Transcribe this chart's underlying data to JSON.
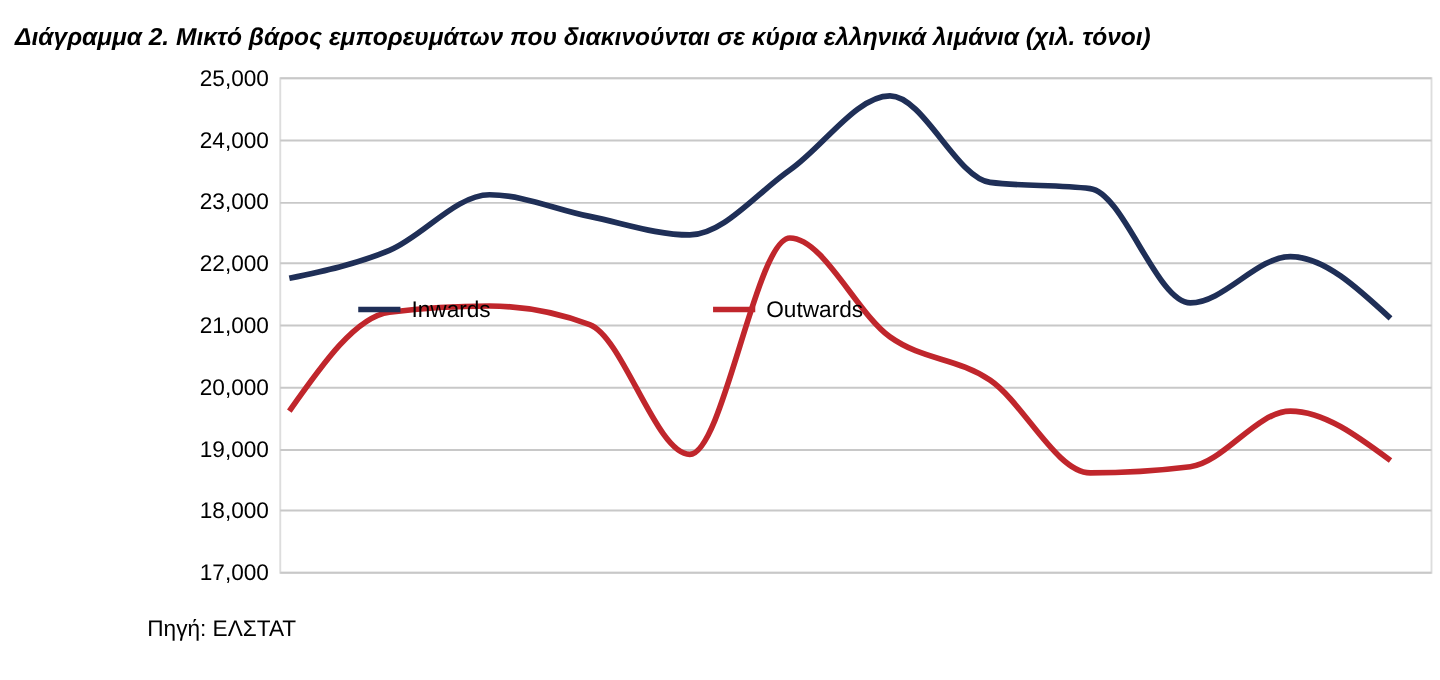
{
  "chart_data": {
    "type": "line",
    "title": "Διάγραμμα 2. Μικτό βάρος εμπορευμάτων που διακινούνται σε κύρια ελληνικά λιμάνια (χιλ. τόνοι)",
    "categories": [
      null,
      null,
      null,
      null,
      null,
      null,
      null,
      null,
      null,
      null,
      null,
      null
    ],
    "series": [
      {
        "name": "Inwards",
        "color": "#1f2f57",
        "values": [
          21750,
          22200,
          23100,
          22750,
          22450,
          23500,
          24700,
          23300,
          23200,
          21350,
          22100,
          21100
        ]
      },
      {
        "name": "Outwards",
        "color": "#c0262c",
        "values": [
          19600,
          21200,
          21300,
          21000,
          18900,
          22400,
          20800,
          20100,
          18600,
          18700,
          19600,
          18800
        ]
      }
    ],
    "ylim": [
      17000,
      25000
    ],
    "yticks": [
      {
        "value": 17000,
        "label": "17,000"
      },
      {
        "value": 18000,
        "label": "18,000"
      },
      {
        "value": 19000,
        "label": "19,000"
      },
      {
        "value": 20000,
        "label": "20,000"
      },
      {
        "value": 21000,
        "label": "21,000"
      },
      {
        "value": 22000,
        "label": "22,000"
      },
      {
        "value": 23000,
        "label": "23,000"
      },
      {
        "value": 24000,
        "label": "24,000"
      },
      {
        "value": 25000,
        "label": "25,000"
      }
    ],
    "grid": "y",
    "legend": "left",
    "marker": "none",
    "line_style": "solid",
    "annotations": [
      "Πηγή: ΕΛΣΤΑΤ"
    ]
  }
}
